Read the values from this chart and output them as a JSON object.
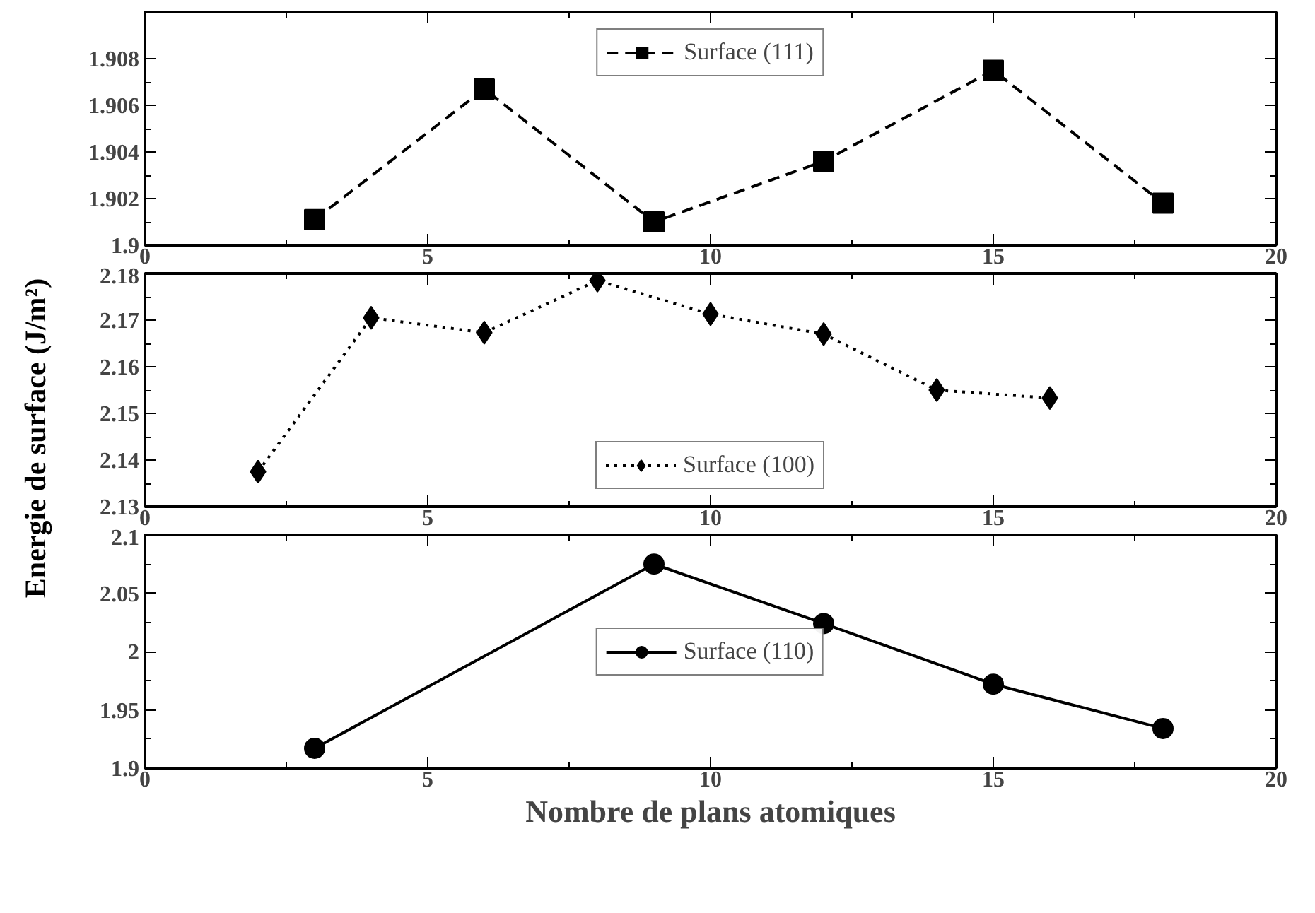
{
  "chart_data": [
    {
      "type": "line",
      "x": [
        3,
        6,
        9,
        12,
        15,
        18
      ],
      "series": [
        {
          "name": "Surface (111)",
          "color": "#000000",
          "values": [
            1.9011,
            1.9067,
            1.901,
            1.9036,
            1.9075,
            1.9018
          ]
        }
      ],
      "marker": "square",
      "line_style": "dashed",
      "xlim": [
        0,
        20
      ],
      "xticks": [
        0,
        5,
        10,
        15,
        20
      ],
      "ylim": [
        1.9,
        1.91
      ],
      "yticks": [
        1.9,
        1.902,
        1.904,
        1.906,
        1.908
      ],
      "grid": false,
      "legend": "top"
    },
    {
      "type": "line",
      "x": [
        2,
        4,
        6,
        8,
        10,
        12,
        14,
        16
      ],
      "series": [
        {
          "name": "Surface (100)",
          "color": "#000000",
          "values": [
            2.1375,
            2.1705,
            2.1673,
            2.1785,
            2.1713,
            2.167,
            2.155,
            2.1533
          ]
        }
      ],
      "marker": "diamond",
      "line_style": "dotted",
      "xlim": [
        0,
        20
      ],
      "xticks": [
        0,
        5,
        10,
        15,
        20
      ],
      "ylim": [
        2.13,
        2.18
      ],
      "yticks": [
        2.13,
        2.14,
        2.15,
        2.16,
        2.17,
        2.18
      ],
      "ylabel": "Energie de surface (J/m²)",
      "grid": false,
      "legend": "bottom"
    },
    {
      "type": "line",
      "x": [
        3,
        9,
        12,
        15,
        18
      ],
      "series": [
        {
          "name": "Surface (110)",
          "color": "#000000",
          "values": [
            1.917,
            2.075,
            2.024,
            1.972,
            1.934
          ]
        }
      ],
      "marker": "circle",
      "line_style": "solid",
      "xlim": [
        0,
        20
      ],
      "xticks": [
        0,
        5,
        10,
        15,
        20
      ],
      "ylim": [
        1.9,
        2.1
      ],
      "yticks": [
        1.9,
        1.95,
        2,
        2.05,
        2.1
      ],
      "xlabel": "Nombre de plans atomiques",
      "grid": false,
      "legend": "center"
    }
  ]
}
